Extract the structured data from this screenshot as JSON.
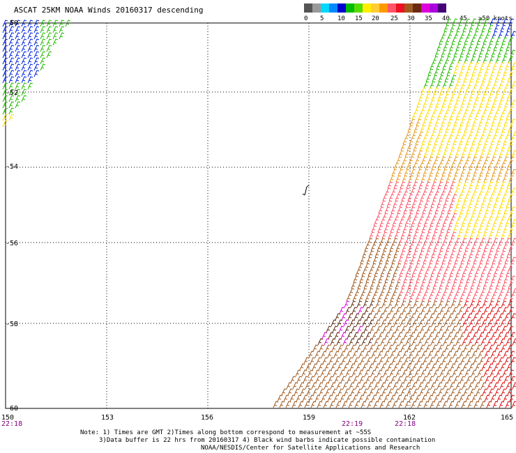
{
  "title": "ASCAT 25KM NOAA Winds 20160317 descending",
  "legend": {
    "colors": [
      "#555555",
      "#999999",
      "#00d8ff",
      "#0088ff",
      "#0000cc",
      "#00bb00",
      "#55dd00",
      "#ffee00",
      "#ffcc33",
      "#ff9900",
      "#ff5566",
      "#ee1122",
      "#a05a20",
      "#6a2a10",
      "#dd00dd",
      "#aa00dd",
      "#440077"
    ],
    "labels": [
      "0",
      "5",
      "10",
      "15",
      "20",
      "25",
      "30",
      "35",
      "40",
      "45",
      "≥50 knots"
    ]
  },
  "axes": {
    "lat_labels": [
      "-50",
      "-52",
      "-54",
      "-56",
      "-58",
      "-60"
    ],
    "lon_labels": [
      "150",
      "153",
      "156",
      "159",
      "162",
      "165"
    ]
  },
  "times": [
    {
      "label": "22:18"
    },
    {
      "label": "22:19"
    },
    {
      "label": "22:18"
    }
  ],
  "notes": {
    "line1": "Note: 1) Times are GMT 2)Times along bottom correspond to measurement at ~55S",
    "line2": "3)Data buffer is 22 hrs from 20160317 4) Black wind barbs indicate possible contamination",
    "line3": "NOAA/NESDIS/Center for Satellite Applications and Research"
  },
  "swath_colors": {
    "blue": "#0022dd",
    "green": "#22bb00",
    "yellow": "#ffdd00",
    "orange": "#e89a20",
    "salmon": "#ff5566",
    "red": "#dd1111",
    "brown": "#a05a20",
    "darkbrown": "#5a2a10",
    "magenta": "#dd00dd"
  }
}
